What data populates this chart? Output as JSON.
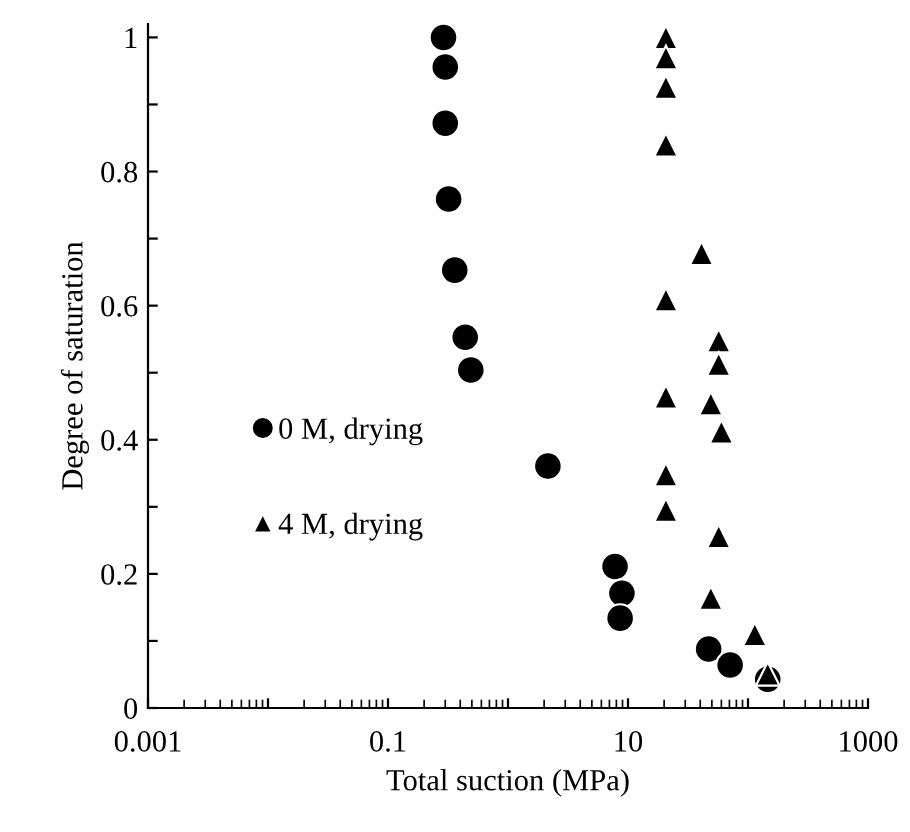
{
  "chart_data": {
    "type": "scatter",
    "xlabel": "Total suction (MPa)",
    "ylabel": "Degree of saturation",
    "log": "x",
    "xlim": [
      0.001,
      1000
    ],
    "ylim": [
      0,
      1.02
    ],
    "xticks": [
      0.001,
      {
        "value": 0.01,
        "label": null
      },
      0.1,
      {
        "value": 1,
        "label": null
      },
      10,
      {
        "value": 100,
        "label": null
      },
      1000
    ],
    "yticks": [
      0,
      {
        "value": 0.1,
        "label": null
      },
      0.2,
      {
        "value": 0.3,
        "label": null
      },
      0.4,
      {
        "value": 0.5,
        "label": null
      },
      0.6,
      {
        "value": 0.7,
        "label": null
      },
      0.8,
      {
        "value": 0.9,
        "label": null
      },
      1
    ],
    "grid": false,
    "legend": "left",
    "series": [
      {
        "name": "0 M, drying",
        "color": "#000000",
        "marker": "circle",
        "x": [
          0.29,
          0.3,
          0.3,
          0.32,
          0.36,
          0.44,
          0.49,
          2.15,
          7.8,
          8.9,
          8.6,
          47,
          71,
          146
        ],
        "values": [
          1.0,
          0.956,
          0.872,
          0.759,
          0.653,
          0.553,
          0.504,
          0.361,
          0.211,
          0.171,
          0.134,
          0.088,
          0.064,
          0.043
        ]
      },
      {
        "name": "4 M, drying",
        "color": "#000000",
        "marker": "triangle",
        "x": [
          20.7,
          20.7,
          20.7,
          20.7,
          41,
          20.7,
          57,
          57,
          49,
          60,
          20.7,
          20.7,
          20.7,
          57,
          49,
          114,
          146
        ],
        "values": [
          1.0,
          0.97,
          0.926,
          0.84,
          0.678,
          0.609,
          0.548,
          0.513,
          0.454,
          0.412,
          0.464,
          0.348,
          0.295,
          0.256,
          0.164,
          0.11,
          0.051
        ]
      }
    ]
  }
}
